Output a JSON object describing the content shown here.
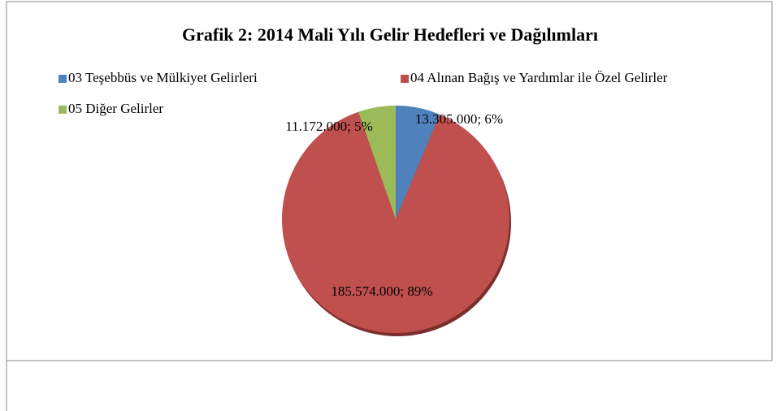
{
  "chart_data": {
    "type": "pie",
    "title": "Grafik 2: 2014 Mali Yılı Gelir Hedefleri ve Dağılımları",
    "categories": [
      "03 Teşebbüs ve Mülkiyet Gelirleri",
      "04 Alınan Bağış ve Yardımlar ile Özel Gelirler",
      "05 Diğer Gelirler"
    ],
    "values": [
      13305000,
      185574000,
      11172000
    ],
    "value_labels": [
      "13.305.000; 6%",
      "185.574.000; 89%",
      "11.172.000; 5%"
    ],
    "colors": [
      "#4f81bd",
      "#c0504d",
      "#9bbb59"
    ],
    "legend": "top"
  }
}
